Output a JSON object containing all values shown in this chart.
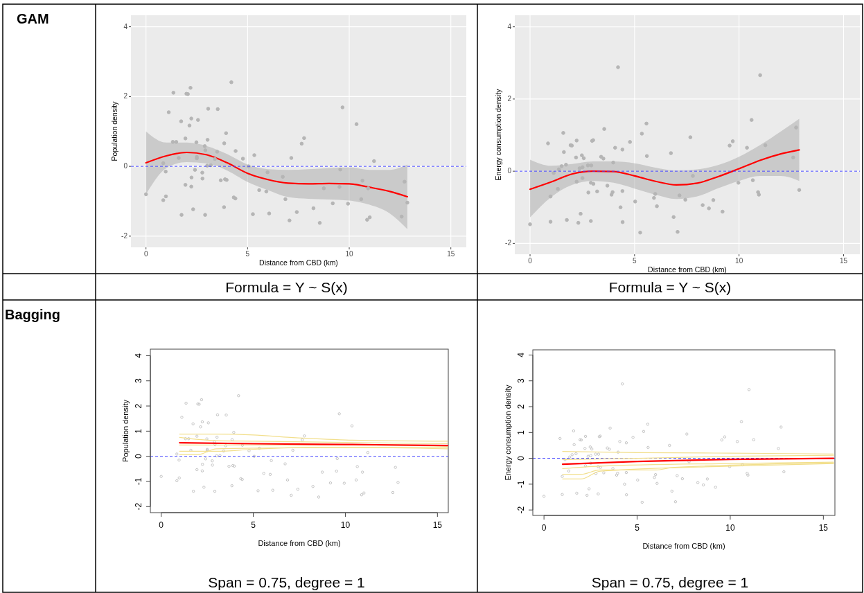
{
  "chart_data": [
    {
      "type": "scatter",
      "title": "GAM",
      "xlabel": "Distance from CBD (km)",
      "ylabel": "Population density",
      "annotations": [
        "Formula = Y ~ S(x)"
      ],
      "xlim": [
        -0.74,
        15.76
      ],
      "ylim": [
        -2.32,
        4.33
      ],
      "xticks": [
        0,
        5,
        10,
        15
      ],
      "yticks": [
        -2,
        0,
        2,
        4
      ],
      "grid": true,
      "ref_lines": [
        {
          "axis": "y",
          "value": 0,
          "color": "#4444ff",
          "line_style": "dashed"
        }
      ],
      "series": [
        {
          "type": "scatter",
          "marker": "circle",
          "color": "#b5b5b5",
          "x": [
            0,
            0.85,
            0.85,
            0.97,
            0.98,
            1.12,
            1.32,
            1.35,
            1.49,
            1.61,
            1.73,
            1.75,
            1.94,
            1.94,
            1.99,
            2.06,
            2.14,
            2.19,
            2.23,
            2.24,
            2.23,
            2.32,
            2.41,
            2.48,
            2.5,
            2.5,
            2.56,
            2.77,
            2.78,
            2.89,
            2.91,
            2.92,
            3.01,
            3.03,
            3.06,
            3.19,
            3.39,
            3.5,
            3.53,
            3.68,
            3.84,
            3.85,
            3.89,
            3.94,
            3.97,
            4.2,
            4.32,
            4.4,
            4.41,
            4.77,
            5.05,
            5.26,
            5.33,
            5.57,
            5.92,
            5.98,
            6.06,
            6.73,
            6.86,
            7.06,
            7.15,
            7.42,
            7.66,
            7.78,
            8.24,
            8.55,
            8.75,
            9.19,
            9.52,
            9.56,
            9.67,
            9.94,
            10.36,
            10.59,
            10.65,
            10.88,
            10.93,
            11.01,
            11.22,
            12.58,
            12.72,
            12.86
          ],
          "values": [
            -0.8,
            -0.97,
            0.09,
            -0.15,
            -0.86,
            1.55,
            0.7,
            2.11,
            0.7,
            0.24,
            1.29,
            -1.39,
            0.8,
            -0.53,
            2.08,
            2.07,
            1.17,
            2.25,
            1.37,
            -0.32,
            -0.58,
            -1.23,
            -0.1,
            0.69,
            0.23,
            0.27,
            1.33,
            -0.18,
            -0.35,
            0.58,
            -1.39,
            0.46,
            0.02,
            0.76,
            1.65,
            0.03,
            0.21,
            0.42,
            1.64,
            -0.4,
            -1.17,
            0.66,
            -0.37,
            0.95,
            -0.39,
            2.41,
            -0.89,
            -0.92,
            0.44,
            0.22,
            0,
            -1.37,
            0.32,
            -0.68,
            -0.72,
            -0.17,
            -1.35,
            -0.3,
            -0.94,
            -1.55,
            0.24,
            -1.31,
            0.65,
            0.81,
            -1.2,
            -1.62,
            -0.63,
            -1.06,
            -0.59,
            -0.09,
            1.69,
            -1.07,
            1.21,
            -0.94,
            -0.41,
            -1.53,
            -0.63,
            -1.46,
            0.15,
            -1.44,
            -0.44,
            -1.04
          ]
        },
        {
          "type": "line",
          "color": "#ff0000",
          "x": [
            0,
            1,
            2,
            3,
            4,
            5,
            6,
            7,
            8,
            9,
            10,
            11,
            12,
            12.86
          ],
          "values": [
            0.1,
            0.3,
            0.4,
            0.33,
            0.1,
            -0.2,
            -0.38,
            -0.48,
            -0.5,
            -0.49,
            -0.5,
            -0.6,
            -0.72,
            -0.87
          ],
          "lower": [
            -0.8,
            -0.05,
            0.12,
            0.08,
            -0.12,
            -0.45,
            -0.68,
            -0.88,
            -0.93,
            -0.95,
            -0.98,
            -1.1,
            -1.35,
            -1.8
          ],
          "upper": [
            1.0,
            0.68,
            0.68,
            0.58,
            0.35,
            0.05,
            -0.08,
            -0.1,
            -0.08,
            -0.05,
            -0.03,
            -0.1,
            -0.1,
            0.05
          ]
        }
      ]
    },
    {
      "type": "scatter",
      "xlabel": "Distance from CBD (km)",
      "ylabel": "Energy consumption density",
      "annotations": [
        "Formula = Y ~ S(x)"
      ],
      "xlim": [
        -0.73,
        15.78
      ],
      "ylim": [
        -2.3,
        4.32
      ],
      "xticks": [
        0,
        5,
        10,
        15
      ],
      "yticks": [
        -2,
        0,
        2,
        4
      ],
      "grid": true,
      "ref_lines": [
        {
          "axis": "y",
          "value": 0,
          "color": "#4444ff",
          "line_style": "dashed"
        }
      ],
      "series": [
        {
          "type": "scatter",
          "marker": "circle",
          "color": "#b5b5b5",
          "x": [
            0,
            0.86,
            0.98,
            0.98,
            1.13,
            1.33,
            1.38,
            1.51,
            1.59,
            1.62,
            1.72,
            1.76,
            1.94,
            2,
            2.2,
            2.23,
            2.23,
            2.31,
            2.37,
            2.42,
            2.48,
            2.51,
            2.51,
            2.57,
            2.77,
            2.79,
            2.91,
            2.91,
            2.93,
            2.97,
            3.02,
            3.03,
            3.21,
            3.4,
            3.51,
            3.55,
            3.7,
            3.9,
            3.95,
            3.98,
            4.07,
            4.21,
            4.33,
            4.42,
            4.42,
            4.43,
            4.78,
            5.03,
            5.27,
            5.35,
            5.57,
            5.59,
            5.93,
            5.99,
            6.07,
            6.74,
            6.87,
            7.06,
            7.15,
            7.43,
            7.67,
            7.79,
            8.26,
            8.56,
            8.77,
            9.21,
            9.55,
            9.7,
            9.97,
            10.38,
            10.6,
            10.66,
            10.91,
            10.95,
            11.01,
            11.26,
            12.59,
            12.73,
            12.88
          ],
          "values": [
            -1.47,
            0.77,
            -0.7,
            -1.4,
            -0.05,
            -0.49,
            0.05,
            0.14,
            1.06,
            0.53,
            0.18,
            -1.35,
            0.72,
            0.71,
            0.38,
            0.85,
            -0.29,
            -1.43,
            0.08,
            -1.18,
            0.44,
            0.11,
            -0.19,
            0.36,
            0.16,
            -0.59,
            -1.38,
            -0.32,
            0.16,
            0.84,
            0.86,
            -0.35,
            -0.56,
            0.4,
            0.35,
            1.17,
            -0.4,
            -0.65,
            -0.58,
            0.24,
            0.65,
            2.88,
            -1,
            -0.55,
            0.6,
            -1.41,
            0.81,
            -0.84,
            -1.7,
            1.04,
            1.32,
            0.42,
            -0.74,
            -0.63,
            -0.97,
            0.5,
            -1.27,
            -1.68,
            -0.67,
            -0.79,
            0.94,
            -0.13,
            -0.94,
            -1.03,
            -0.8,
            -1.12,
            0.71,
            0.83,
            -0.32,
            0.65,
            1.42,
            -0.25,
            -0.58,
            -0.65,
            2.66,
            0.72,
            0.38,
            1.21,
            -0.52
          ]
        },
        {
          "type": "line",
          "color": "#ff0000",
          "x": [
            0,
            1,
            2,
            3,
            4,
            5,
            6,
            7,
            8,
            9,
            10,
            11,
            12,
            12.88
          ],
          "values": [
            -0.5,
            -0.3,
            -0.08,
            0,
            -0.01,
            -0.13,
            -0.28,
            -0.38,
            -0.33,
            -0.15,
            0.07,
            0.3,
            0.48,
            0.59
          ],
          "lower": [
            -1.28,
            -0.72,
            -0.38,
            -0.27,
            -0.32,
            -0.48,
            -0.65,
            -0.77,
            -0.7,
            -0.47,
            -0.27,
            -0.13,
            -0.13,
            -0.27
          ],
          "upper": [
            0.32,
            0.15,
            0.2,
            0.27,
            0.27,
            0.22,
            0.1,
            0.02,
            0.05,
            0.17,
            0.4,
            0.72,
            1.1,
            1.45
          ]
        }
      ]
    },
    {
      "type": "scatter",
      "title": "Bagging",
      "xlabel": "Distance from CBD (km)",
      "ylabel": "Population density",
      "annotations": [
        "Span = 0.75, degree = 1"
      ],
      "xlim": [
        -0.59,
        15.59
      ],
      "ylim": [
        -2.24,
        4.26
      ],
      "xticks": [
        0,
        5,
        10,
        15
      ],
      "yticks": [
        -2,
        -1,
        0,
        1,
        2,
        3,
        4
      ],
      "grid": false,
      "ref_lines": [
        {
          "axis": "y",
          "value": 0,
          "color": "#4444ff",
          "line_style": "dashed"
        }
      ],
      "series": [
        {
          "type": "scatter",
          "marker": "circle",
          "color": "#c4c4c4",
          "x": [
            0,
            0.85,
            0.85,
            0.97,
            0.98,
            1.12,
            1.32,
            1.35,
            1.49,
            1.61,
            1.73,
            1.75,
            1.94,
            1.94,
            1.99,
            2.06,
            2.14,
            2.19,
            2.23,
            2.24,
            2.23,
            2.32,
            2.41,
            2.48,
            2.5,
            2.5,
            2.56,
            2.77,
            2.78,
            2.89,
            2.91,
            2.92,
            3.01,
            3.03,
            3.06,
            3.19,
            3.39,
            3.5,
            3.53,
            3.68,
            3.84,
            3.85,
            3.89,
            3.94,
            3.97,
            4.2,
            4.32,
            4.4,
            4.41,
            4.77,
            5.05,
            5.26,
            5.33,
            5.57,
            5.92,
            5.98,
            6.06,
            6.73,
            6.86,
            7.06,
            7.15,
            7.42,
            7.66,
            7.78,
            8.24,
            8.55,
            8.75,
            9.19,
            9.52,
            9.56,
            9.67,
            9.94,
            10.36,
            10.59,
            10.65,
            10.88,
            10.93,
            11.01,
            11.22,
            12.58,
            12.72,
            12.86
          ],
          "values": [
            -0.8,
            -0.97,
            0.09,
            -0.15,
            -0.86,
            1.55,
            0.7,
            2.11,
            0.7,
            0.24,
            1.29,
            -1.39,
            0.8,
            -0.53,
            2.08,
            2.07,
            1.17,
            2.25,
            1.37,
            -0.32,
            -0.58,
            -1.23,
            -0.1,
            0.69,
            0.23,
            0.27,
            1.33,
            -0.18,
            -0.35,
            0.58,
            -1.39,
            0.46,
            0.02,
            0.76,
            1.65,
            0.03,
            0.21,
            0.42,
            1.64,
            -0.4,
            -1.17,
            0.66,
            -0.37,
            0.95,
            -0.39,
            2.41,
            -0.89,
            -0.92,
            0.44,
            0.22,
            0,
            -1.37,
            0.32,
            -0.68,
            -0.72,
            -0.17,
            -1.35,
            -0.3,
            -0.94,
            -1.55,
            0.24,
            -1.31,
            0.65,
            0.81,
            -1.2,
            -1.62,
            -0.63,
            -1.06,
            -0.59,
            -0.09,
            1.69,
            -1.07,
            1.21,
            -0.94,
            -0.41,
            -1.53,
            -0.63,
            -1.46,
            0.15,
            -1.44,
            -0.44,
            -1.04
          ]
        },
        {
          "type": "line",
          "color": "#f2df8c",
          "x": [
            1,
            3,
            5,
            7,
            10,
            15.55
          ],
          "values": [
            0.88,
            0.88,
            0.85,
            0.75,
            0.65,
            0.6
          ]
        },
        {
          "type": "line",
          "color": "#f2df8c",
          "x": [
            1,
            3,
            5,
            10,
            15.55
          ],
          "values": [
            0.75,
            0.62,
            0.6,
            0.55,
            0.5
          ]
        },
        {
          "type": "line",
          "color": "#f2df8c",
          "x": [
            1,
            5,
            10,
            15.55
          ],
          "values": [
            0.45,
            0.45,
            0.45,
            0.4
          ]
        },
        {
          "type": "line",
          "color": "#f2df8c",
          "x": [
            1,
            3,
            5,
            8,
            15.55
          ],
          "values": [
            0.2,
            0.2,
            0.28,
            0.35,
            0.35
          ]
        },
        {
          "type": "line",
          "color": "#f2df8c",
          "x": [
            1,
            2,
            3,
            6,
            10,
            15.55
          ],
          "values": [
            0.07,
            0.07,
            0.3,
            0.33,
            0.35,
            0.3
          ]
        },
        {
          "type": "line",
          "color": "#ff0000",
          "x": [
            1,
            5,
            10,
            15.55
          ],
          "values": [
            0.54,
            0.5,
            0.47,
            0.43
          ]
        }
      ]
    },
    {
      "type": "scatter",
      "xlabel": "Distance from CBD (km)",
      "ylabel": "Energy consumption density",
      "annotations": [
        "Span = 0.75, degree = 1"
      ],
      "xlim": [
        -0.6,
        15.62
      ],
      "ylim": [
        -2.21,
        4.2
      ],
      "xticks": [
        0,
        5,
        10,
        15
      ],
      "yticks": [
        -2,
        -1,
        0,
        1,
        2,
        3,
        4
      ],
      "grid": false,
      "ref_lines": [
        {
          "axis": "y",
          "value": 0,
          "color": "#4444ff",
          "line_style": "dashed"
        }
      ],
      "series": [
        {
          "type": "scatter",
          "marker": "circle",
          "color": "#c4c4c4",
          "x": [
            0,
            0.86,
            0.98,
            0.98,
            1.13,
            1.33,
            1.38,
            1.51,
            1.59,
            1.62,
            1.72,
            1.76,
            1.94,
            2,
            2.2,
            2.23,
            2.23,
            2.31,
            2.37,
            2.42,
            2.48,
            2.51,
            2.51,
            2.57,
            2.77,
            2.79,
            2.91,
            2.91,
            2.93,
            2.97,
            3.02,
            3.03,
            3.21,
            3.4,
            3.51,
            3.55,
            3.7,
            3.9,
            3.95,
            3.98,
            4.07,
            4.21,
            4.33,
            4.42,
            4.42,
            4.43,
            4.78,
            5.03,
            5.27,
            5.35,
            5.57,
            5.59,
            5.93,
            5.99,
            6.07,
            6.74,
            6.87,
            7.06,
            7.15,
            7.43,
            7.67,
            7.79,
            8.26,
            8.56,
            8.77,
            9.21,
            9.55,
            9.7,
            9.97,
            10.38,
            10.6,
            10.66,
            10.91,
            10.95,
            11.01,
            11.26,
            12.59,
            12.73,
            12.88
          ],
          "values": [
            -1.47,
            0.77,
            -0.7,
            -1.4,
            -0.05,
            -0.49,
            0.05,
            0.14,
            1.06,
            0.53,
            0.18,
            -1.35,
            0.72,
            0.71,
            0.38,
            0.85,
            -0.29,
            -1.43,
            0.08,
            -1.18,
            0.44,
            0.11,
            -0.19,
            0.36,
            0.16,
            -0.59,
            -1.38,
            -0.32,
            0.16,
            0.84,
            0.86,
            -0.35,
            -0.56,
            0.4,
            0.35,
            1.17,
            -0.4,
            -0.65,
            -0.58,
            0.24,
            0.65,
            2.88,
            -1,
            -0.55,
            0.6,
            -1.41,
            0.81,
            -0.84,
            -1.7,
            1.04,
            1.32,
            0.42,
            -0.74,
            -0.63,
            -0.97,
            0.5,
            -1.27,
            -1.68,
            -0.67,
            -0.79,
            0.94,
            -0.13,
            -0.94,
            -1.03,
            -0.8,
            -1.12,
            0.71,
            0.83,
            -0.32,
            0.65,
            1.42,
            -0.25,
            -0.58,
            -0.65,
            2.66,
            0.72,
            0.38,
            1.21,
            -0.52
          ]
        },
        {
          "type": "line",
          "color": "#f2df8c",
          "x": [
            1,
            5,
            10,
            15.55
          ],
          "values": [
            0.27,
            0.22,
            0.2,
            0.17
          ]
        },
        {
          "type": "line",
          "color": "#f2df8c",
          "x": [
            1,
            5,
            10,
            15.55
          ],
          "values": [
            -0.05,
            0,
            0.08,
            0.12
          ]
        },
        {
          "type": "line",
          "color": "#f2df8c",
          "x": [
            1,
            3,
            10,
            15.55
          ],
          "values": [
            -0.4,
            -0.3,
            -0.2,
            -0.15
          ]
        },
        {
          "type": "line",
          "color": "#f2df8c",
          "x": [
            1,
            2,
            3,
            6,
            7,
            15.55
          ],
          "values": [
            -0.62,
            -0.62,
            -0.45,
            -0.45,
            -0.35,
            -0.18
          ]
        },
        {
          "type": "line",
          "color": "#f2df8c",
          "x": [
            1,
            2,
            3,
            10,
            15.55
          ],
          "values": [
            -0.8,
            -0.8,
            -0.5,
            -0.3,
            -0.2
          ]
        },
        {
          "type": "line",
          "color": "#ff0000",
          "x": [
            1,
            5,
            10,
            15.55
          ],
          "values": [
            -0.23,
            -0.12,
            -0.04,
            0
          ]
        }
      ]
    }
  ]
}
